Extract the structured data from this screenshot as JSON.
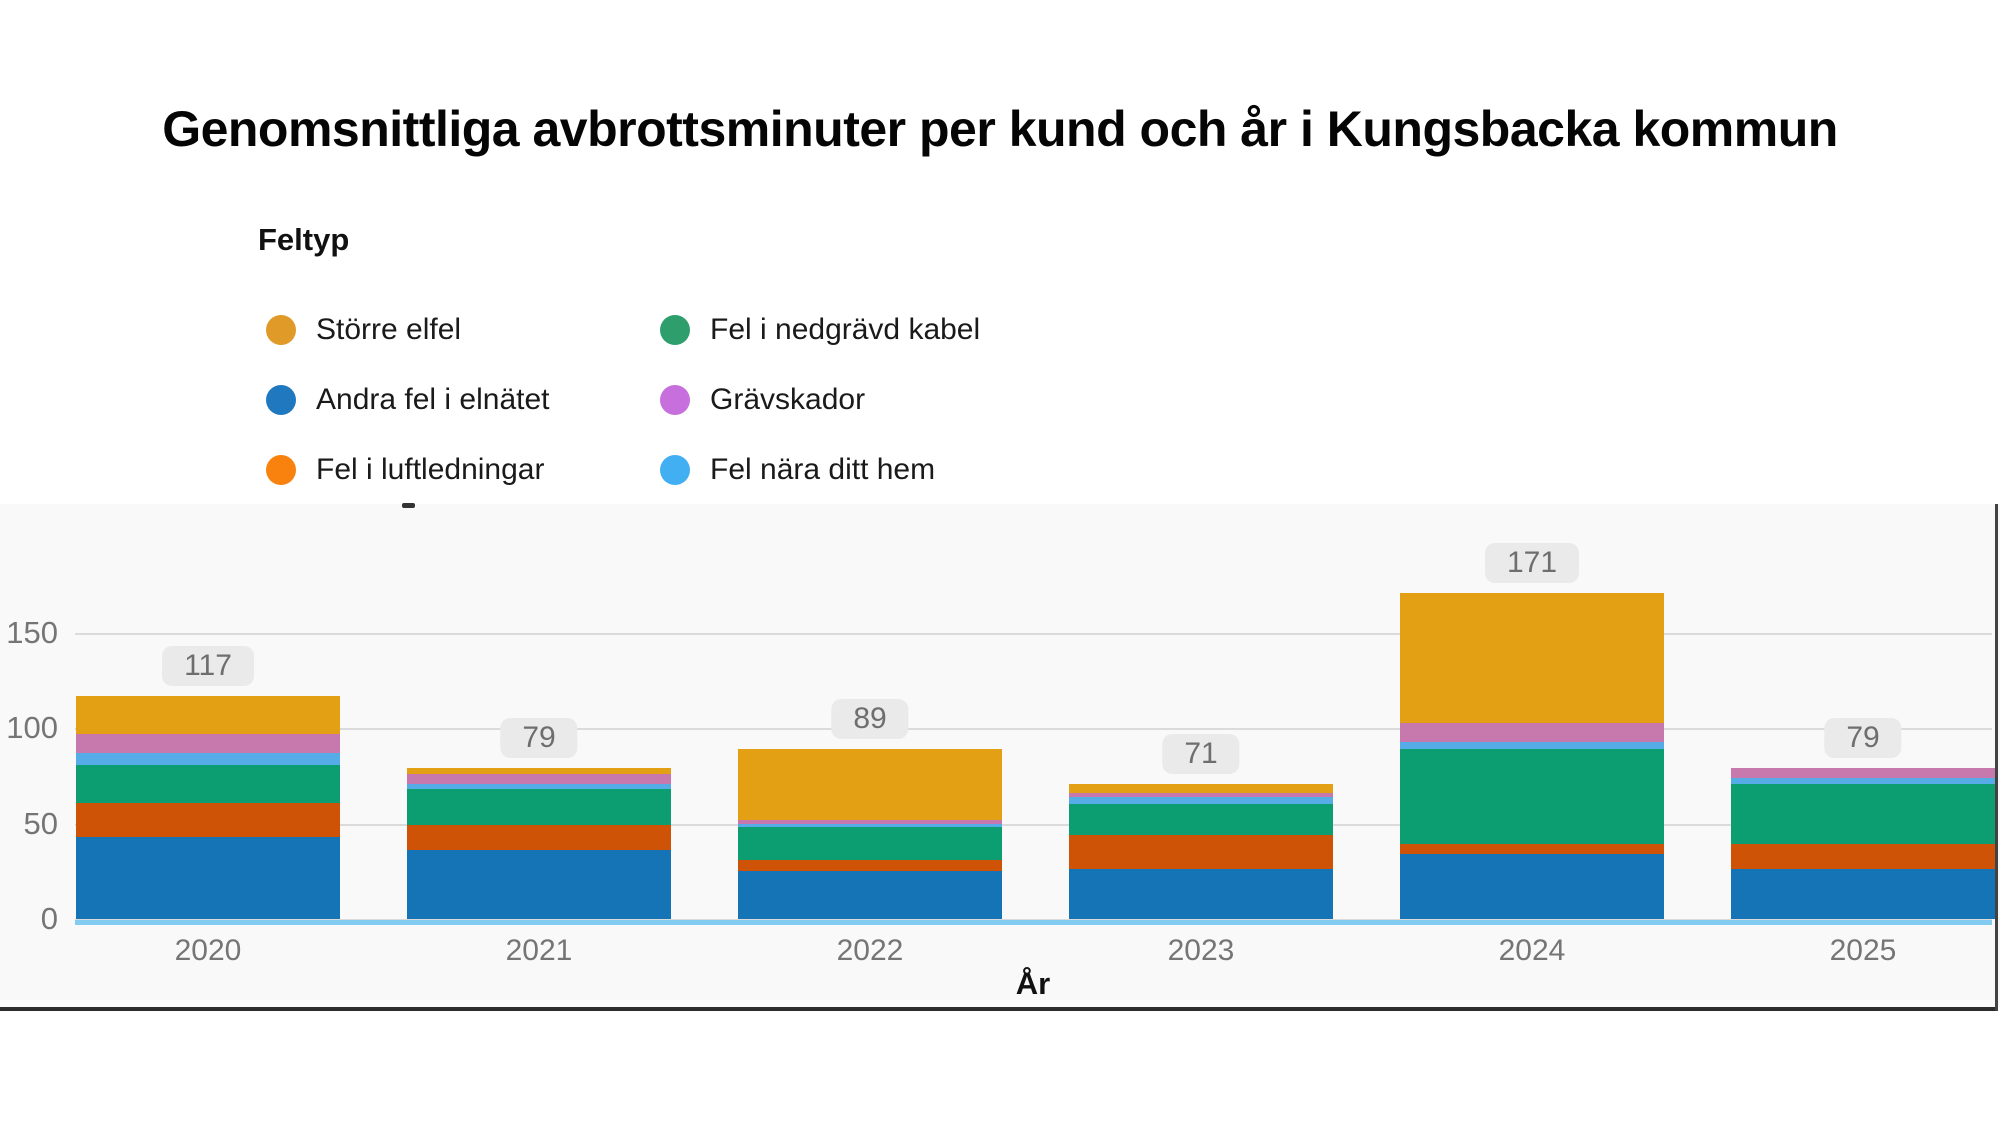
{
  "chart_data": {
    "type": "bar",
    "stacked": true,
    "title": "Genomsnittliga avbrottsminuter per kund och år i Kungsbacka kommun",
    "legend_title": "Feltyp",
    "xlabel": "År",
    "categories": [
      "2020",
      "2021",
      "2022",
      "2023",
      "2024",
      "2025"
    ],
    "series": [
      {
        "name": "Andra fel i elnätet",
        "color": "#1474b6",
        "dot_color": "#2079be",
        "values": [
          43,
          36,
          25,
          26,
          34,
          26
        ]
      },
      {
        "name": "Fel i luftledningar",
        "color": "#ce5306",
        "dot_color": "#f9820e",
        "values": [
          18,
          13,
          6,
          18,
          5,
          13
        ]
      },
      {
        "name": "Fel i nedgrävd kabel",
        "color": "#0c9e70",
        "dot_color": "#2e9e6c",
        "values": [
          20,
          19,
          17,
          16,
          50,
          32
        ]
      },
      {
        "name": "Fel nära ditt hem",
        "color": "#55ace6",
        "dot_color": "#41aff2",
        "values": [
          6,
          3,
          2,
          4,
          4,
          3
        ]
      },
      {
        "name": "Grävskador",
        "color": "#c779ae",
        "dot_color": "#c76fdc",
        "values": [
          10,
          5,
          2,
          2,
          10,
          5
        ]
      },
      {
        "name": "Större elfel",
        "color": "#e4a014",
        "dot_color": "#e09a28",
        "values": [
          20,
          3,
          37,
          5,
          68,
          0
        ]
      }
    ],
    "legend_order": [
      5,
      2,
      0,
      4,
      1,
      3
    ],
    "totals": [
      117,
      79,
      89,
      71,
      171,
      79
    ],
    "yticks": [
      0,
      50,
      100,
      150
    ],
    "ylim": [
      0,
      190
    ],
    "grid": true,
    "legend_position": "top-left",
    "colors": {
      "grid_line": "#dbdbdb",
      "baseline_accent": "#84cbf2",
      "tick_label": "#757575",
      "badge_bg": "#eaeaea",
      "badge_text": "#6e6e6e",
      "panel_bg": "#faf9fa",
      "panel_border": "#2b2b2b"
    }
  }
}
